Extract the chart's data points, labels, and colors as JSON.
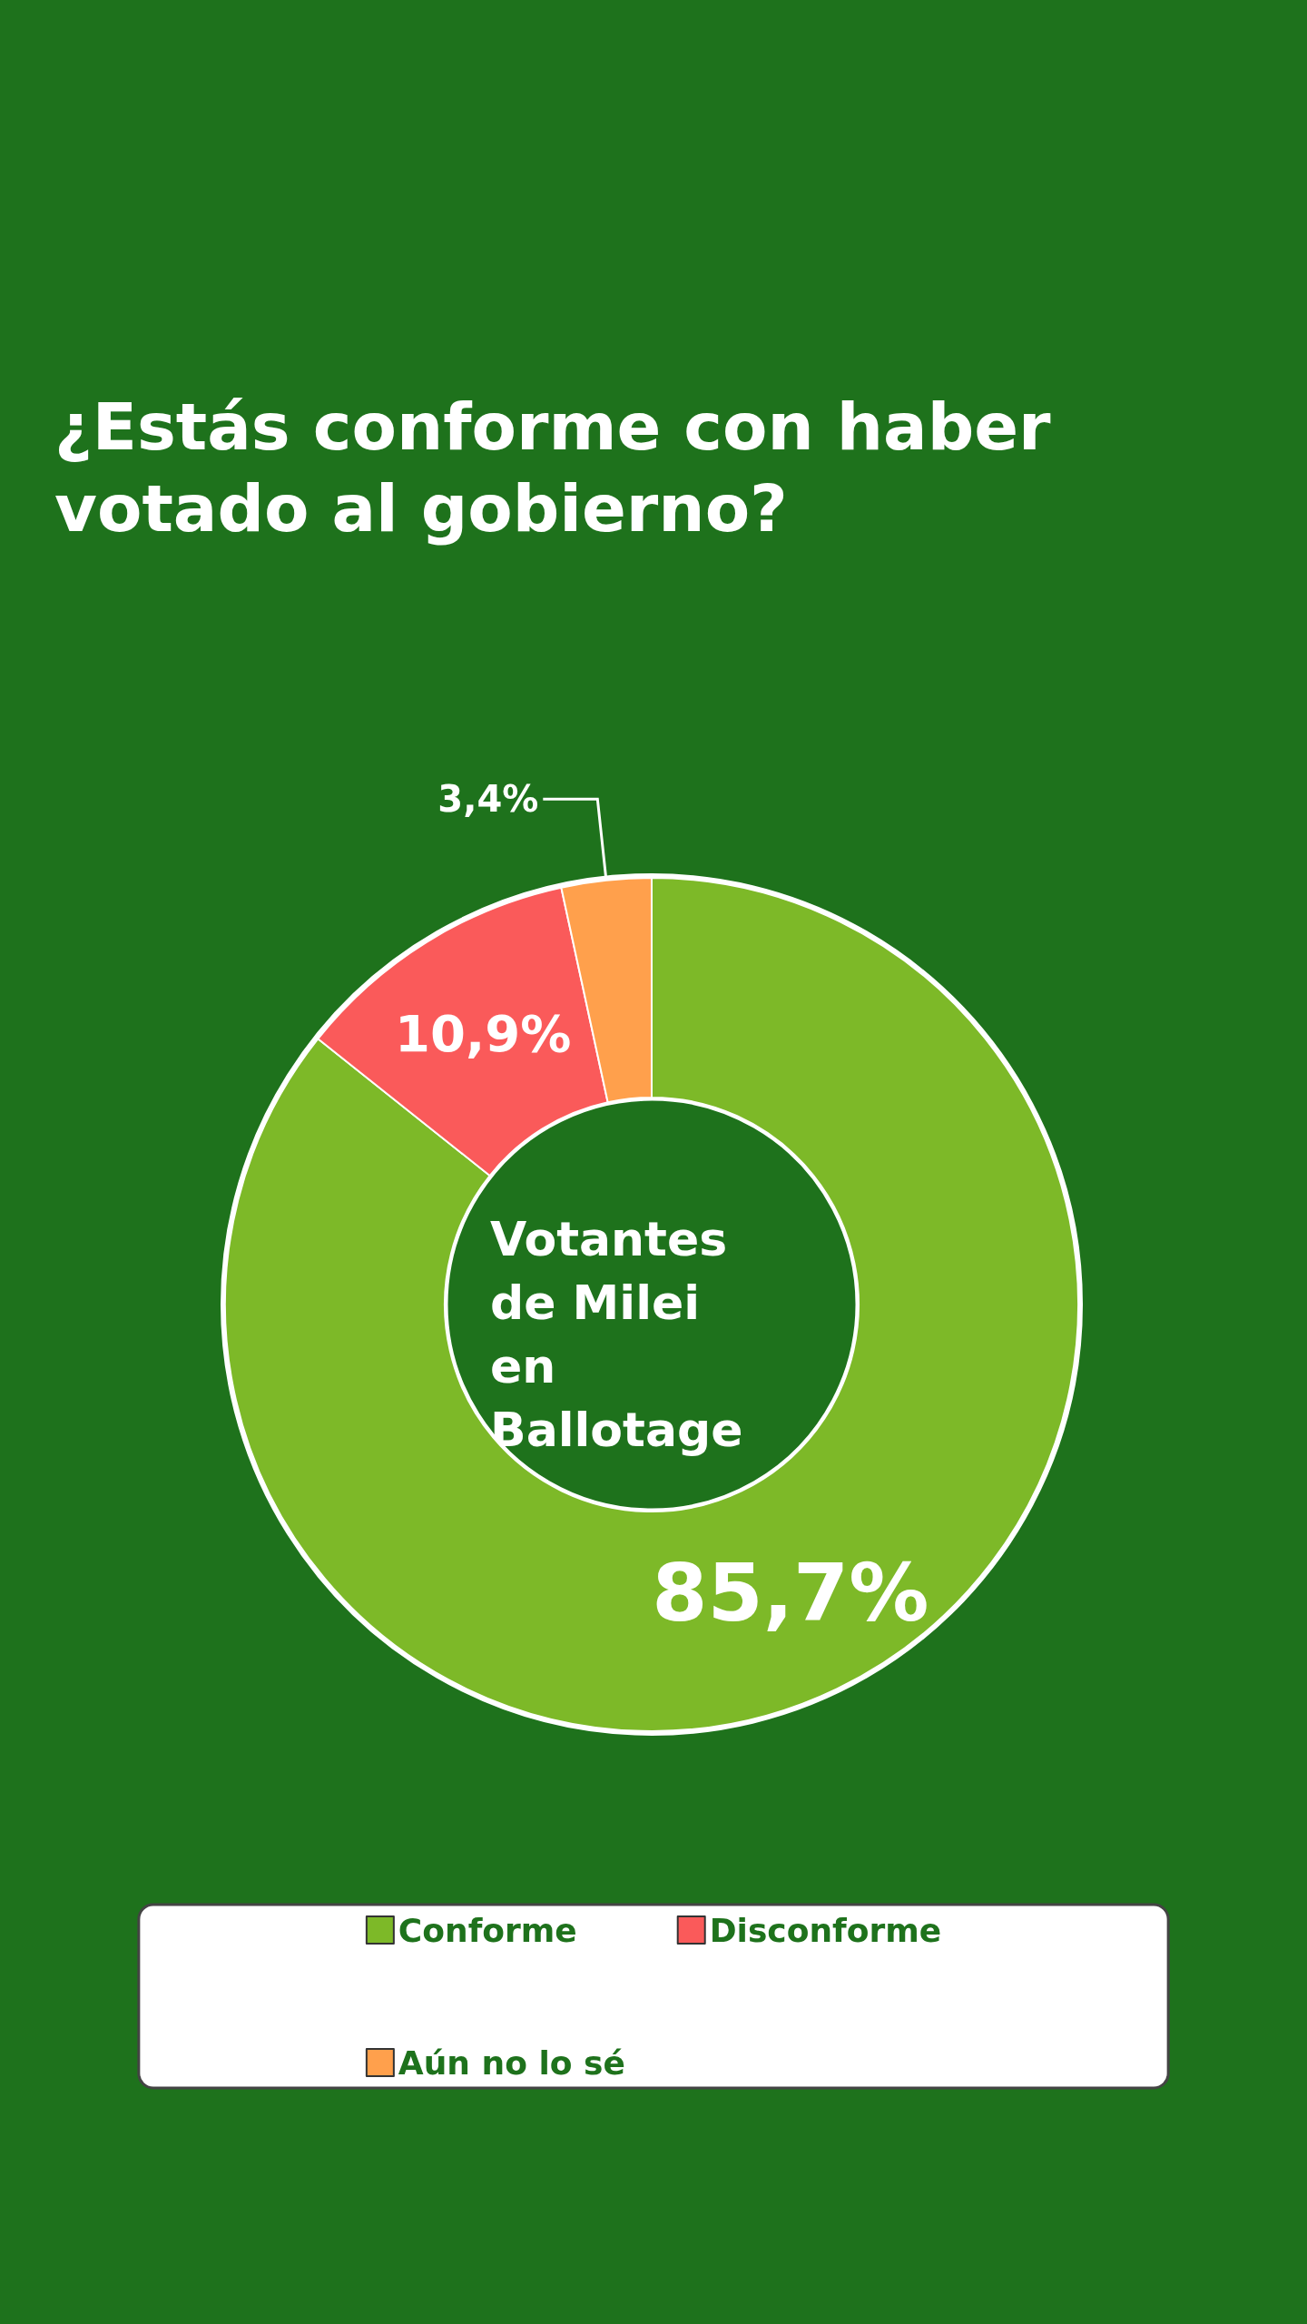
{
  "chart_data": {
    "type": "donut",
    "title": "¿Estás conforme con haber votado al gobierno?",
    "categories": [
      "Conforme",
      "Disconforme",
      "Aún no lo sé"
    ],
    "values": [
      85.7,
      10.9,
      3.4
    ],
    "colors": [
      "#7db928",
      "#fa5a5a",
      "#ffa04c"
    ],
    "value_labels": [
      "85,7%",
      "10,9%",
      "3,4%"
    ],
    "annotations": [
      "Votantes de Milei en Ballotage"
    ],
    "legend": "bottom"
  }
}
